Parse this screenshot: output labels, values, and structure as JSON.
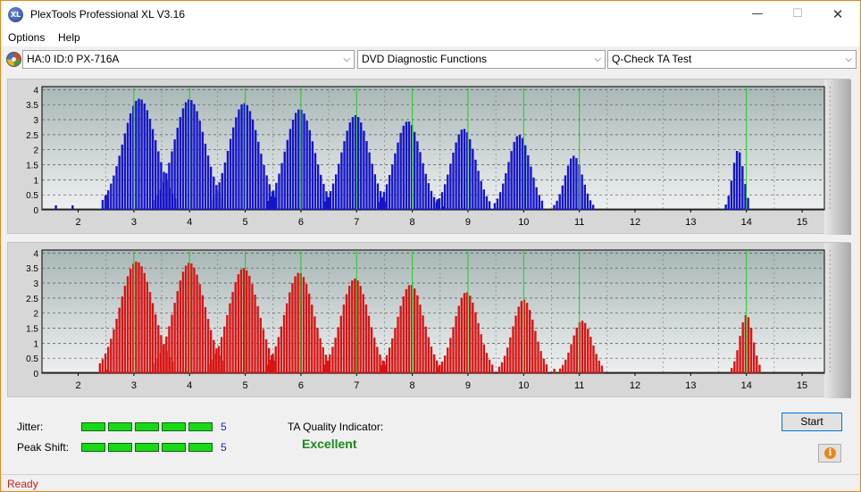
{
  "window": {
    "title": "PlexTools Professional XL V3.16",
    "icon_label": "XL",
    "minimize": "—",
    "maximize": "☐",
    "close": "✕"
  },
  "menu": {
    "items": [
      "Options",
      "Help"
    ]
  },
  "toolbar": {
    "drive": "HA:0 ID:0  PX-716A",
    "function": "DVD Diagnostic Functions",
    "test": "Q-Check TA Test"
  },
  "colors": {
    "top_bars": "#1515c8",
    "bottom_bars": "#d81515",
    "marker_lines": "#22cc22",
    "plot_bg_top": "#a9b7b7",
    "plot_bg_bottom": "#eef0f0"
  },
  "chart_data": [
    {
      "type": "bar",
      "name": "top",
      "x_ticks": [
        "2",
        "3",
        "4",
        "5",
        "6",
        "7",
        "8",
        "9",
        "10",
        "11",
        "12",
        "13",
        "14",
        "15"
      ],
      "y_ticks": [
        "0",
        "0.5",
        "1",
        "1.5",
        "2",
        "2.5",
        "3",
        "3.5",
        "4"
      ],
      "xlim": [
        1.35,
        15.4
      ],
      "ylim": [
        0,
        4.1
      ],
      "markers": [
        3,
        4,
        5,
        6,
        7,
        8,
        9,
        10,
        11,
        14
      ],
      "peaks": [
        {
          "center": 3.1,
          "height": 3.7,
          "width": 0.3
        },
        {
          "center": 4.0,
          "height": 3.68,
          "width": 0.28
        },
        {
          "center": 4.98,
          "height": 3.55,
          "width": 0.27
        },
        {
          "center": 5.98,
          "height": 3.35,
          "width": 0.26
        },
        {
          "center": 6.98,
          "height": 3.15,
          "width": 0.25
        },
        {
          "center": 7.92,
          "height": 2.95,
          "width": 0.24
        },
        {
          "center": 8.92,
          "height": 2.7,
          "width": 0.22
        },
        {
          "center": 9.92,
          "height": 2.5,
          "width": 0.2
        },
        {
          "center": 10.9,
          "height": 1.8,
          "width": 0.16
        },
        {
          "center": 13.85,
          "height": 2.0,
          "width": 0.1
        }
      ],
      "extra_bars": [
        [
          1.6,
          0.15
        ],
        [
          1.9,
          0.15
        ],
        [
          2.5,
          0.5
        ],
        [
          8.45,
          0.35
        ],
        [
          8.55,
          0.12
        ]
      ]
    },
    {
      "type": "bar",
      "name": "bottom",
      "x_ticks": [
        "2",
        "3",
        "4",
        "5",
        "6",
        "7",
        "8",
        "9",
        "10",
        "11",
        "12",
        "13",
        "14",
        "15"
      ],
      "y_ticks": [
        "0",
        "0.5",
        "1",
        "1.5",
        "2",
        "2.5",
        "3",
        "3.5",
        "4"
      ],
      "xlim": [
        1.35,
        15.4
      ],
      "ylim": [
        0,
        4.1
      ],
      "markers": [
        3,
        4,
        5,
        6,
        7,
        8,
        9,
        10,
        11,
        14
      ],
      "peaks": [
        {
          "center": 3.05,
          "height": 3.72,
          "width": 0.3
        },
        {
          "center": 4.0,
          "height": 3.68,
          "width": 0.28
        },
        {
          "center": 4.97,
          "height": 3.5,
          "width": 0.27
        },
        {
          "center": 5.97,
          "height": 3.35,
          "width": 0.26
        },
        {
          "center": 6.97,
          "height": 3.15,
          "width": 0.25
        },
        {
          "center": 7.97,
          "height": 2.95,
          "width": 0.24
        },
        {
          "center": 8.97,
          "height": 2.7,
          "width": 0.22
        },
        {
          "center": 10.0,
          "height": 2.45,
          "width": 0.2
        },
        {
          "center": 11.05,
          "height": 1.75,
          "width": 0.18
        },
        {
          "center": 14.0,
          "height": 1.95,
          "width": 0.12
        }
      ],
      "extra_bars": [
        [
          2.5,
          0.12
        ],
        [
          8.45,
          0.2
        ],
        [
          10.55,
          0.15
        ]
      ]
    }
  ],
  "results": {
    "jitter_label": "Jitter:",
    "jitter_value": "5",
    "jitter_leds": 5,
    "peak_label": "Peak Shift:",
    "peak_value": "5",
    "peak_leds": 5,
    "ta_label": "TA Quality Indicator:",
    "ta_value": "Excellent",
    "start_label": "Start",
    "info_icon": "i"
  },
  "status": {
    "text": "Ready"
  }
}
